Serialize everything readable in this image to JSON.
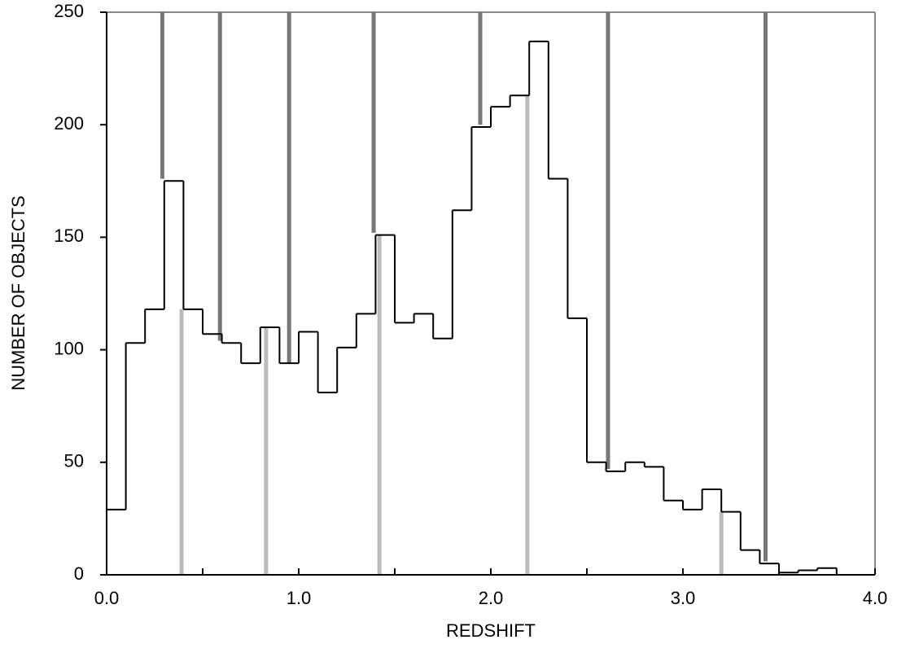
{
  "chart_data": {
    "type": "histogram",
    "xlabel": "REDSHIFT",
    "ylabel": "NUMBER OF OBJECTS",
    "bins": [
      0,
      0.1,
      0.2,
      0.3,
      0.4,
      0.5,
      0.6,
      0.7,
      0.8,
      0.9,
      1.0,
      1.1,
      1.2,
      1.3,
      1.4,
      1.5,
      1.6,
      1.7,
      1.8,
      1.9,
      2.0,
      2.1,
      2.2,
      2.3,
      2.4,
      2.5,
      2.6,
      2.7,
      2.8,
      2.9,
      3.0,
      3.1,
      3.2,
      3.3,
      3.4,
      3.5,
      3.6,
      3.7,
      3.8
    ],
    "values": [
      29,
      103,
      118,
      175,
      118,
      107,
      103,
      94,
      110,
      94,
      108,
      81,
      101,
      116,
      151,
      112,
      116,
      105,
      162,
      199,
      208,
      213,
      237,
      176,
      114,
      50,
      46,
      50,
      48,
      33,
      29,
      38,
      28,
      11,
      5,
      1,
      2,
      3
    ],
    "color": "#000000",
    "markers_top": {
      "color": "#777777",
      "x": [
        0.29,
        0.59,
        0.95,
        1.39,
        1.945,
        2.61,
        3.43
      ],
      "values": [
        176,
        104,
        94,
        152,
        200,
        47,
        6
      ]
    },
    "markers_bottom": {
      "color": "#bbbbbb",
      "x": [
        0.39,
        0.83,
        1.42,
        2.19,
        3.2
      ],
      "values": [
        118,
        110,
        151,
        213,
        28
      ]
    },
    "xlim": [
      0,
      4
    ],
    "xticks": [
      {
        "value": 0,
        "label": "0.0"
      },
      {
        "value": 1,
        "label": "1.0"
      },
      {
        "value": 2,
        "label": "2.0"
      },
      {
        "value": 3,
        "label": "3.0"
      },
      {
        "value": 4,
        "label": "4.0"
      }
    ],
    "xminorticks": [
      0.5,
      1.5,
      2.5,
      3.5
    ],
    "ylim": [
      0,
      250
    ],
    "yticks": [
      0,
      50,
      100,
      150,
      200,
      250
    ],
    "grid": false
  }
}
